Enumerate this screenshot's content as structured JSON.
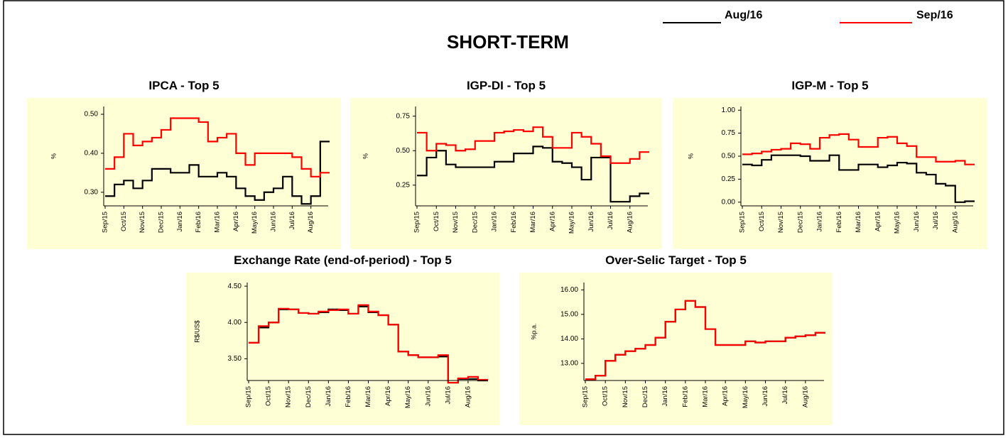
{
  "title": "SHORT-TERM",
  "chart_data": [
    {
      "type": "line",
      "title": "IPCA - Top 5",
      "ylabel": "%",
      "categories": [
        "Sep/15",
        null,
        "Oct/15",
        null,
        "Nov/15",
        null,
        "Dec/15",
        null,
        "Jan/16",
        null,
        "Feb/16",
        null,
        "Mar/16",
        null,
        "Apr/16",
        null,
        "May/16",
        null,
        "Jun/16",
        null,
        "Jul/16",
        null,
        "Aug/16",
        null
      ],
      "series": [
        {
          "name": "Aug/16",
          "color": "#000000",
          "values": [
            0.29,
            0.32,
            0.33,
            0.31,
            0.33,
            0.36,
            0.36,
            0.35,
            0.35,
            0.37,
            0.34,
            0.34,
            0.35,
            0.34,
            0.31,
            0.29,
            0.28,
            0.3,
            0.31,
            0.34,
            0.29,
            0.27,
            0.29,
            0.43
          ]
        },
        {
          "name": "Sep/16",
          "color": "#ff0000",
          "values": [
            0.36,
            0.39,
            0.45,
            0.42,
            0.43,
            0.44,
            0.46,
            0.49,
            0.49,
            0.49,
            0.48,
            0.43,
            0.44,
            0.45,
            0.4,
            0.37,
            0.4,
            0.4,
            0.4,
            0.4,
            0.39,
            0.36,
            0.34,
            0.35
          ]
        }
      ],
      "ylim": [
        0.265,
        0.52
      ],
      "yticks": [
        {
          "value": 0.3,
          "label": "0.30"
        },
        {
          "value": 0.4,
          "label": "0.40"
        },
        {
          "value": 0.5,
          "label": "0.50"
        }
      ]
    },
    {
      "type": "line",
      "title": "IGP-DI - Top 5",
      "ylabel": "%",
      "categories": [
        "Sep/15",
        null,
        "Oct/15",
        null,
        "Nov/15",
        null,
        "Dec/15",
        null,
        "Jan/16",
        null,
        "Feb/16",
        null,
        "Mar/16",
        null,
        "Apr/16",
        null,
        "May/16",
        null,
        "Jun/16",
        null,
        "Jul/16",
        null,
        "Aug/16",
        null
      ],
      "series": [
        {
          "name": "Aug/16",
          "color": "#000000",
          "values": [
            0.32,
            0.45,
            0.5,
            0.4,
            0.38,
            0.38,
            0.38,
            0.38,
            0.42,
            0.42,
            0.48,
            0.48,
            0.53,
            0.52,
            0.42,
            0.41,
            0.38,
            0.29,
            0.45,
            0.45,
            0.13,
            0.13,
            0.17,
            0.19
          ]
        },
        {
          "name": "Sep/16",
          "color": "#ff0000",
          "values": [
            0.63,
            0.5,
            0.55,
            0.54,
            0.5,
            0.51,
            0.57,
            0.57,
            0.63,
            0.64,
            0.65,
            0.64,
            0.67,
            0.6,
            0.52,
            0.52,
            0.63,
            0.6,
            0.55,
            0.46,
            0.41,
            0.41,
            0.44,
            0.49
          ]
        }
      ],
      "ylim": [
        0.1,
        0.82
      ],
      "yticks": [
        {
          "value": 0.25,
          "label": "0.25"
        },
        {
          "value": 0.5,
          "label": "0.50"
        },
        {
          "value": 0.75,
          "label": "0.75"
        }
      ]
    },
    {
      "type": "line",
      "title": "IGP-M - Top 5",
      "ylabel": "%",
      "categories": [
        "Sep/15",
        null,
        "Oct/15",
        null,
        "Nov/15",
        null,
        "Dec/15",
        null,
        "Jan/16",
        null,
        "Feb/16",
        null,
        "Mar/16",
        null,
        "Apr/16",
        null,
        "May/16",
        null,
        "Jun/16",
        null,
        "Jul/16",
        null,
        "Aug/16",
        null
      ],
      "series": [
        {
          "name": "Aug/16",
          "color": "#000000",
          "values": [
            0.41,
            0.4,
            0.46,
            0.51,
            0.51,
            0.51,
            0.5,
            0.45,
            0.45,
            0.51,
            0.35,
            0.35,
            0.41,
            0.41,
            0.38,
            0.4,
            0.43,
            0.42,
            0.32,
            0.3,
            0.2,
            0.18,
            0.0,
            0.01
          ]
        },
        {
          "name": "Sep/16",
          "color": "#ff0000",
          "values": [
            0.52,
            0.53,
            0.55,
            0.57,
            0.58,
            0.64,
            0.63,
            0.58,
            0.7,
            0.73,
            0.74,
            0.68,
            0.6,
            0.6,
            0.7,
            0.71,
            0.64,
            0.61,
            0.49,
            0.49,
            0.44,
            0.44,
            0.45,
            0.41
          ]
        }
      ],
      "ylim": [
        -0.04,
        1.04
      ],
      "yticks": [
        {
          "value": 0,
          "label": "0.00"
        },
        {
          "value": 0.25,
          "label": "0.25"
        },
        {
          "value": 0.5,
          "label": "0.50"
        },
        {
          "value": 0.75,
          "label": "0.75"
        },
        {
          "value": 1,
          "label": "1.00"
        }
      ]
    },
    {
      "type": "line",
      "title": "Exchange Rate (end-of-period) - Top 5",
      "ylabel": "R$/US$",
      "categories": [
        "Sep/15",
        null,
        "Oct/15",
        null,
        "Nov/15",
        null,
        "Dec/15",
        null,
        "Jan/16",
        null,
        "Feb/16",
        null,
        "Mar/16",
        null,
        "Apr/16",
        null,
        "May/16",
        null,
        "Jun/16",
        null,
        "Jul/16",
        null,
        "Aug/16",
        null
      ],
      "series": [
        {
          "name": "Aug/16",
          "color": "#000000",
          "values": [
            3.72,
            3.93,
            4.0,
            4.18,
            4.18,
            4.13,
            4.12,
            4.14,
            4.18,
            4.17,
            4.12,
            4.22,
            4.14,
            4.1,
            3.97,
            3.6,
            3.55,
            3.52,
            3.52,
            3.53,
            3.17,
            3.22,
            3.22,
            3.2
          ]
        },
        {
          "name": "Sep/16",
          "color": "#ff0000",
          "values": [
            3.72,
            3.95,
            4.0,
            4.19,
            4.18,
            4.13,
            4.12,
            4.15,
            4.17,
            4.18,
            4.12,
            4.24,
            4.15,
            4.1,
            3.97,
            3.6,
            3.55,
            3.52,
            3.52,
            3.55,
            3.17,
            3.23,
            3.25,
            3.21
          ]
        }
      ],
      "ylim": [
        3.2,
        4.55
      ],
      "yticks": [
        {
          "value": 3.5,
          "label": "3.50"
        },
        {
          "value": 4,
          "label": "4.00"
        },
        {
          "value": 4.5,
          "label": "4.50"
        }
      ]
    },
    {
      "type": "line",
      "title": "Over-Selic Target - Top 5",
      "ylabel": "%p.a.",
      "categories": [
        "Sep/15",
        null,
        "Oct/15",
        null,
        "Nov/15",
        null,
        "Dec/15",
        null,
        "Jan/16",
        null,
        "Feb/16",
        null,
        "Mar/16",
        null,
        "Apr/16",
        null,
        "May/16",
        null,
        "Jun/16",
        null,
        "Jul/16",
        null,
        "Aug/16",
        null
      ],
      "series": [
        {
          "name": "Aug/16",
          "color": "#000000",
          "values": [
            12.35,
            12.5,
            13.1,
            13.35,
            13.5,
            13.6,
            13.75,
            14.05,
            14.7,
            15.2,
            15.55,
            15.3,
            14.4,
            13.75,
            13.75,
            13.75,
            13.9,
            13.85,
            13.9,
            13.9,
            14.05,
            14.1,
            14.15,
            14.25
          ]
        },
        {
          "name": "Sep/16",
          "color": "#ff0000",
          "values": [
            12.35,
            12.5,
            13.1,
            13.35,
            13.5,
            13.6,
            13.75,
            14.05,
            14.7,
            15.2,
            15.55,
            15.3,
            14.4,
            13.75,
            13.75,
            13.75,
            13.9,
            13.85,
            13.9,
            13.9,
            14.05,
            14.1,
            14.15,
            14.25
          ]
        }
      ],
      "ylim": [
        12.3,
        16.3
      ],
      "yticks": [
        {
          "value": 13,
          "label": "13.00"
        },
        {
          "value": 14,
          "label": "14.00"
        },
        {
          "value": 15,
          "label": "15.00"
        },
        {
          "value": 16,
          "label": "16.00"
        }
      ]
    }
  ]
}
